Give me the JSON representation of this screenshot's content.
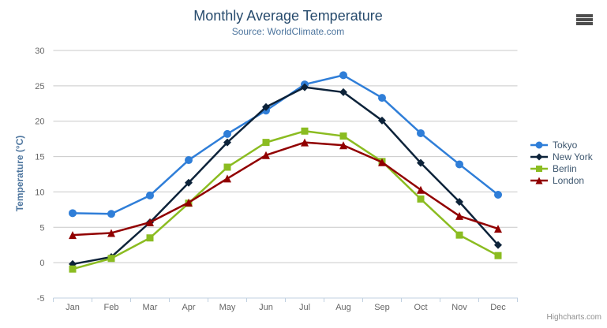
{
  "chart_data": {
    "type": "line",
    "title": "Monthly Average Temperature",
    "subtitle": "Source: WorldClimate.com",
    "xlabel": "",
    "ylabel": "Temperature (°C)",
    "categories": [
      "Jan",
      "Feb",
      "Mar",
      "Apr",
      "May",
      "Jun",
      "Jul",
      "Aug",
      "Sep",
      "Oct",
      "Nov",
      "Dec"
    ],
    "ylim": [
      -5,
      30
    ],
    "ytick_step": 5,
    "grid": "horizontal",
    "legend_position": "right",
    "colors": {
      "grid_line": "#c9c9c9",
      "axis_line": "#c0d0e0",
      "axis_label": "#666666",
      "title": "#274b6d",
      "subtitle": "#4d759e"
    },
    "series": [
      {
        "name": "Tokyo",
        "color": "#2f7ed8",
        "marker": "circle",
        "values": [
          7.0,
          6.9,
          9.5,
          14.5,
          18.2,
          21.5,
          25.2,
          26.5,
          23.3,
          18.3,
          13.9,
          9.6
        ]
      },
      {
        "name": "New York",
        "color": "#0d233a",
        "marker": "diamond",
        "values": [
          -0.2,
          0.8,
          5.7,
          11.3,
          17.0,
          22.0,
          24.8,
          24.1,
          20.1,
          14.1,
          8.6,
          2.5
        ]
      },
      {
        "name": "Berlin",
        "color": "#8bbc21",
        "marker": "square",
        "values": [
          -0.9,
          0.6,
          3.5,
          8.4,
          13.5,
          17.0,
          18.6,
          17.9,
          14.3,
          9.0,
          3.9,
          1.0
        ]
      },
      {
        "name": "London",
        "color": "#910000",
        "marker": "triangle",
        "values": [
          3.9,
          4.2,
          5.7,
          8.5,
          11.9,
          15.2,
          17.0,
          16.6,
          14.2,
          10.3,
          6.6,
          4.8
        ]
      }
    ]
  },
  "context_menu": {
    "icon": "hamburger-icon"
  },
  "credits": {
    "label": "Highcharts.com"
  }
}
